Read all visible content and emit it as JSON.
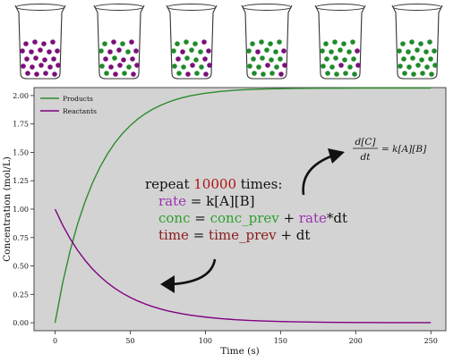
{
  "chart_data": {
    "type": "line",
    "title": "",
    "xlabel": "Time (s)",
    "ylabel": "Concentration (mol/L)",
    "xlim": [
      -14,
      260
    ],
    "ylim": [
      -0.07,
      2.07
    ],
    "xticks": [
      0,
      50,
      100,
      150,
      200,
      250
    ],
    "yticks": [
      0.0,
      0.25,
      0.5,
      0.75,
      1.0,
      1.25,
      1.5,
      1.75,
      2.0
    ],
    "xtick_labels": [
      "0",
      "50",
      "100",
      "150",
      "200",
      "250"
    ],
    "ytick_labels": [
      "0.00",
      "0.25",
      "0.50",
      "0.75",
      "1.00",
      "1.25",
      "1.50",
      "1.75",
      "2.00"
    ],
    "background": "#d3d3d3",
    "grid": false,
    "legend_position": "top-left",
    "x": [
      0,
      5,
      10,
      15,
      20,
      25,
      30,
      35,
      40,
      45,
      50,
      55,
      60,
      65,
      70,
      75,
      80,
      85,
      90,
      95,
      100,
      110,
      120,
      130,
      140,
      150,
      160,
      170,
      180,
      190,
      200,
      210,
      220,
      230,
      240,
      250
    ],
    "series": [
      {
        "name": "Products",
        "color": "#2e8b2e",
        "values": [
          0.0,
          0.348,
          0.633,
          0.87,
          1.068,
          1.234,
          1.373,
          1.489,
          1.587,
          1.668,
          1.736,
          1.793,
          1.84,
          1.88,
          1.913,
          1.94,
          1.963,
          1.982,
          1.998,
          2.01,
          2.02,
          2.036,
          2.047,
          2.054,
          2.058,
          2.061,
          2.063,
          2.064,
          2.065,
          2.065,
          2.066,
          2.066,
          2.066,
          2.066,
          2.066,
          2.066
        ]
      },
      {
        "name": "Reactants",
        "color": "#800080",
        "values": [
          1.0,
          0.861,
          0.741,
          0.638,
          0.549,
          0.472,
          0.407,
          0.35,
          0.301,
          0.259,
          0.223,
          0.192,
          0.165,
          0.142,
          0.122,
          0.105,
          0.091,
          0.078,
          0.067,
          0.058,
          0.05,
          0.037,
          0.027,
          0.02,
          0.015,
          0.011,
          0.008,
          0.006,
          0.004,
          0.003,
          0.002,
          0.002,
          0.001,
          0.001,
          0.001,
          0.001
        ]
      }
    ],
    "annotations": {
      "code_lines": [
        [
          {
            "t": "repeat ",
            "c": "#111111"
          },
          {
            "t": "10000",
            "c": "#b01010"
          },
          {
            "t": " times:",
            "c": "#111111"
          }
        ],
        [
          {
            "t": "rate",
            "c": "#9b30b0"
          },
          {
            "t": " = k[A][B]",
            "c": "#111111"
          }
        ],
        [
          {
            "t": "conc",
            "c": "#2ea02e"
          },
          {
            "t": " = ",
            "c": "#111111"
          },
          {
            "t": "conc_prev",
            "c": "#2ea02e"
          },
          {
            "t": " + ",
            "c": "#111111"
          },
          {
            "t": "rate",
            "c": "#9b30b0"
          },
          {
            "t": "*dt",
            "c": "#111111"
          }
        ],
        [
          {
            "t": "time",
            "c": "#8b1a1a"
          },
          {
            "t": " = ",
            "c": "#111111"
          },
          {
            "t": "time_prev",
            "c": "#8b1a1a"
          },
          {
            "t": " + dt",
            "c": "#111111"
          }
        ]
      ],
      "equation": {
        "numerator": "d[C]",
        "denominator": "dt",
        "rhs": "= k[A][B]"
      }
    }
  },
  "beakers": [
    {
      "product_fraction": 0.0
    },
    {
      "product_fraction": 0.4
    },
    {
      "product_fraction": 0.6
    },
    {
      "product_fraction": 0.75
    },
    {
      "product_fraction": 0.88
    },
    {
      "product_fraction": 1.0
    }
  ],
  "colors": {
    "product": "#1f8a2a",
    "reactant": "#7a0f7a",
    "axes_bg": "#d3d3d3"
  }
}
